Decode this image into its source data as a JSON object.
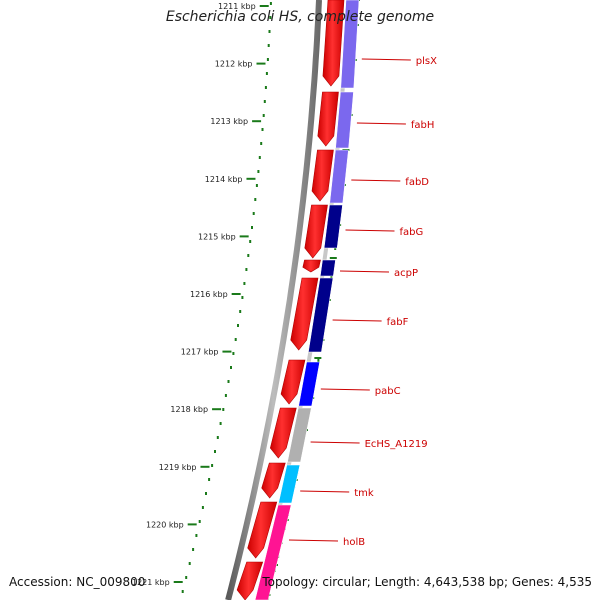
{
  "title": "Escherichia coli HS, complete genome",
  "footer": {
    "accession": "Accession: NC_009800",
    "topology": "Topology: circular; Length: 4,643,538 bp; Genes: 4,535"
  },
  "scale_ticks": [
    "1211 kbp",
    "1212 kbp",
    "1213 kbp",
    "1214 kbp",
    "1215 kbp",
    "1216 kbp",
    "1217 kbp",
    "1218 kbp",
    "1219 kbp",
    "1220 kbp",
    "1221 kbp"
  ],
  "genes": [
    {
      "name": "plsX"
    },
    {
      "name": "fabH"
    },
    {
      "name": "fabD"
    },
    {
      "name": "fabG"
    },
    {
      "name": "acpP"
    },
    {
      "name": "fabF"
    },
    {
      "name": "pabC"
    },
    {
      "name": "EcHS_A1219"
    },
    {
      "name": "tmk"
    },
    {
      "name": "holB"
    }
  ],
  "colors": {
    "forward_strand": "#ff0000",
    "gene_label": "#cc0000",
    "tick": "#1a7a1a",
    "backbone": "#888888",
    "cog_colors": [
      "#7b68ee",
      "#7b68ee",
      "#7b68ee",
      "#00008b",
      "#00008b",
      "#00008b",
      "#0000ff",
      "#b0b0b0",
      "#00bfff",
      "#ff1493"
    ]
  }
}
